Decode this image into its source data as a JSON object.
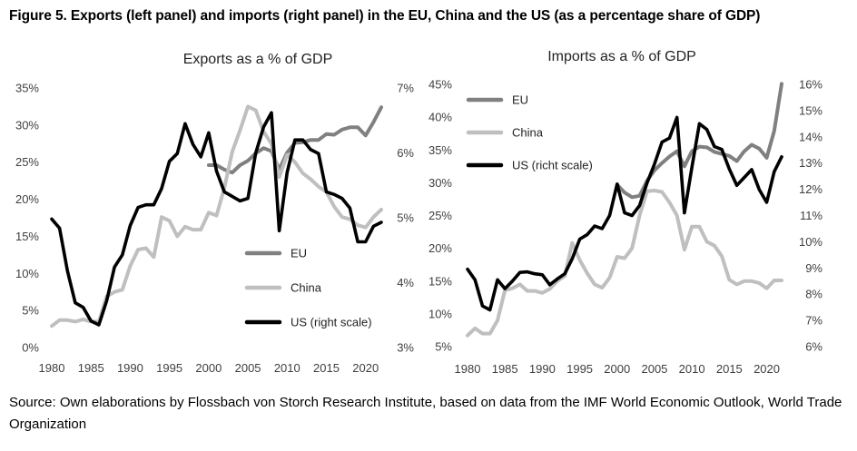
{
  "figure_title": "Figure 5. Exports (left panel) and imports (right panel) in the EU, China and the US (as a percentage share of GDP)",
  "source_note": "Source: Own elaborations by Flossbach von Storch Research Institute, based on data from the IMF World Economic Outlook, World Trade Organization",
  "colors": {
    "eu": "#808080",
    "china": "#bfbfbf",
    "us": "#000000"
  },
  "chart_data": [
    {
      "type": "line",
      "title": "Exports as a % of GDP",
      "xlim": [
        1980,
        2022
      ],
      "x_ticks": [
        "1980",
        "1985",
        "1990",
        "1995",
        "2000",
        "2005",
        "2010",
        "2015",
        "2020"
      ],
      "ylim_left": [
        0,
        35
      ],
      "ylim_right": [
        3,
        7
      ],
      "y_ticks_left": [
        "0%",
        "5%",
        "10%",
        "15%",
        "20%",
        "25%",
        "30%",
        "35%"
      ],
      "y_ticks_right": [
        "3%",
        "4%",
        "5%",
        "6%",
        "7%"
      ],
      "legend_position": "bottom-right",
      "series": [
        {
          "name": "EU",
          "key": "eu",
          "axis": "left",
          "x0": 2000,
          "values": [
            24.6,
            24.6,
            24.0,
            23.6,
            24.6,
            25.2,
            26.2,
            26.9,
            26.5,
            24.0,
            26.3,
            27.6,
            27.7,
            28.0,
            28.0,
            28.8,
            28.7,
            29.4,
            29.7,
            29.7,
            28.6,
            30.4,
            32.4
          ]
        },
        {
          "name": "China",
          "key": "china",
          "axis": "left",
          "x0": 1980,
          "values": [
            2.9,
            3.7,
            3.7,
            3.5,
            3.8,
            3.5,
            3.5,
            6.9,
            7.5,
            7.8,
            11.0,
            13.2,
            13.4,
            12.2,
            17.6,
            17.1,
            15.0,
            16.3,
            15.9,
            15.9,
            18.2,
            17.8,
            21.5,
            26.4,
            29.3,
            32.5,
            32.0,
            29.1,
            27.5,
            23.0,
            26.0,
            25.0,
            23.5,
            22.7,
            21.7,
            21.0,
            19.0,
            17.6,
            17.3,
            16.5,
            16.2,
            17.6,
            18.6
          ]
        },
        {
          "name": "US (right scale)",
          "key": "us",
          "axis": "right",
          "x0": 1980,
          "values": [
            4.98,
            4.84,
            4.18,
            3.69,
            3.62,
            3.41,
            3.35,
            3.72,
            4.24,
            4.43,
            4.88,
            5.16,
            5.2,
            5.2,
            5.45,
            5.87,
            5.99,
            6.45,
            6.13,
            5.94,
            6.31,
            5.72,
            5.4,
            5.33,
            5.26,
            5.3,
            6.0,
            6.4,
            6.62,
            4.8,
            5.7,
            6.2,
            6.2,
            6.05,
            5.99,
            5.4,
            5.36,
            5.3,
            5.15,
            4.63,
            4.63,
            4.87,
            4.93
          ]
        }
      ]
    },
    {
      "type": "line",
      "title": "Imports as a % of GDP",
      "xlim": [
        1980,
        2022
      ],
      "x_ticks": [
        "1980",
        "1985",
        "1990",
        "1995",
        "2000",
        "2005",
        "2010",
        "2015",
        "2020"
      ],
      "ylim_left": [
        5,
        45
      ],
      "ylim_right": [
        6,
        16
      ],
      "y_ticks_left": [
        "5%",
        "10%",
        "15%",
        "20%",
        "25%",
        "30%",
        "35%",
        "40%",
        "45%"
      ],
      "y_ticks_right": [
        "6%",
        "7%",
        "8%",
        "9%",
        "10%",
        "11%",
        "12%",
        "13%",
        "14%",
        "15%",
        "16%"
      ],
      "legend_position": "top-left",
      "series": [
        {
          "name": "EU",
          "key": "eu",
          "axis": "left",
          "x0": 2000,
          "values": [
            29.7,
            28.5,
            27.8,
            28.0,
            30.3,
            31.9,
            33.0,
            34.0,
            34.8,
            32.5,
            34.8,
            35.5,
            35.4,
            34.7,
            34.4,
            34.1,
            33.3,
            34.8,
            35.8,
            35.2,
            33.8,
            37.9,
            45.1
          ]
        },
        {
          "name": "China",
          "key": "china",
          "axis": "left",
          "x0": 1980,
          "values": [
            6.7,
            7.8,
            7.0,
            7.0,
            9.0,
            13.6,
            13.9,
            14.5,
            13.5,
            13.5,
            13.2,
            13.8,
            15.0,
            15.8,
            20.8,
            18.2,
            16.2,
            14.5,
            14.0,
            15.5,
            18.7,
            18.5,
            20.0,
            25.0,
            28.7,
            28.8,
            28.6,
            27.0,
            25.0,
            19.8,
            23.3,
            23.3,
            21.0,
            20.4,
            18.8,
            15.2,
            14.5,
            15.0,
            15.0,
            14.7,
            13.9,
            15.1,
            15.1
          ]
        },
        {
          "name": "US (richt scale)",
          "key": "us",
          "axis": "right",
          "x0": 1980,
          "values": [
            8.95,
            8.55,
            7.55,
            7.4,
            8.55,
            8.21,
            8.5,
            8.83,
            8.85,
            8.78,
            8.74,
            8.36,
            8.58,
            8.78,
            9.35,
            10.1,
            10.27,
            10.6,
            10.5,
            11.0,
            12.2,
            11.1,
            11.0,
            11.38,
            12.24,
            12.97,
            13.8,
            13.95,
            14.74,
            11.1,
            12.83,
            14.5,
            14.28,
            13.63,
            13.52,
            12.78,
            12.15,
            12.45,
            12.75,
            11.99,
            11.5,
            12.67,
            13.24
          ]
        }
      ]
    }
  ]
}
